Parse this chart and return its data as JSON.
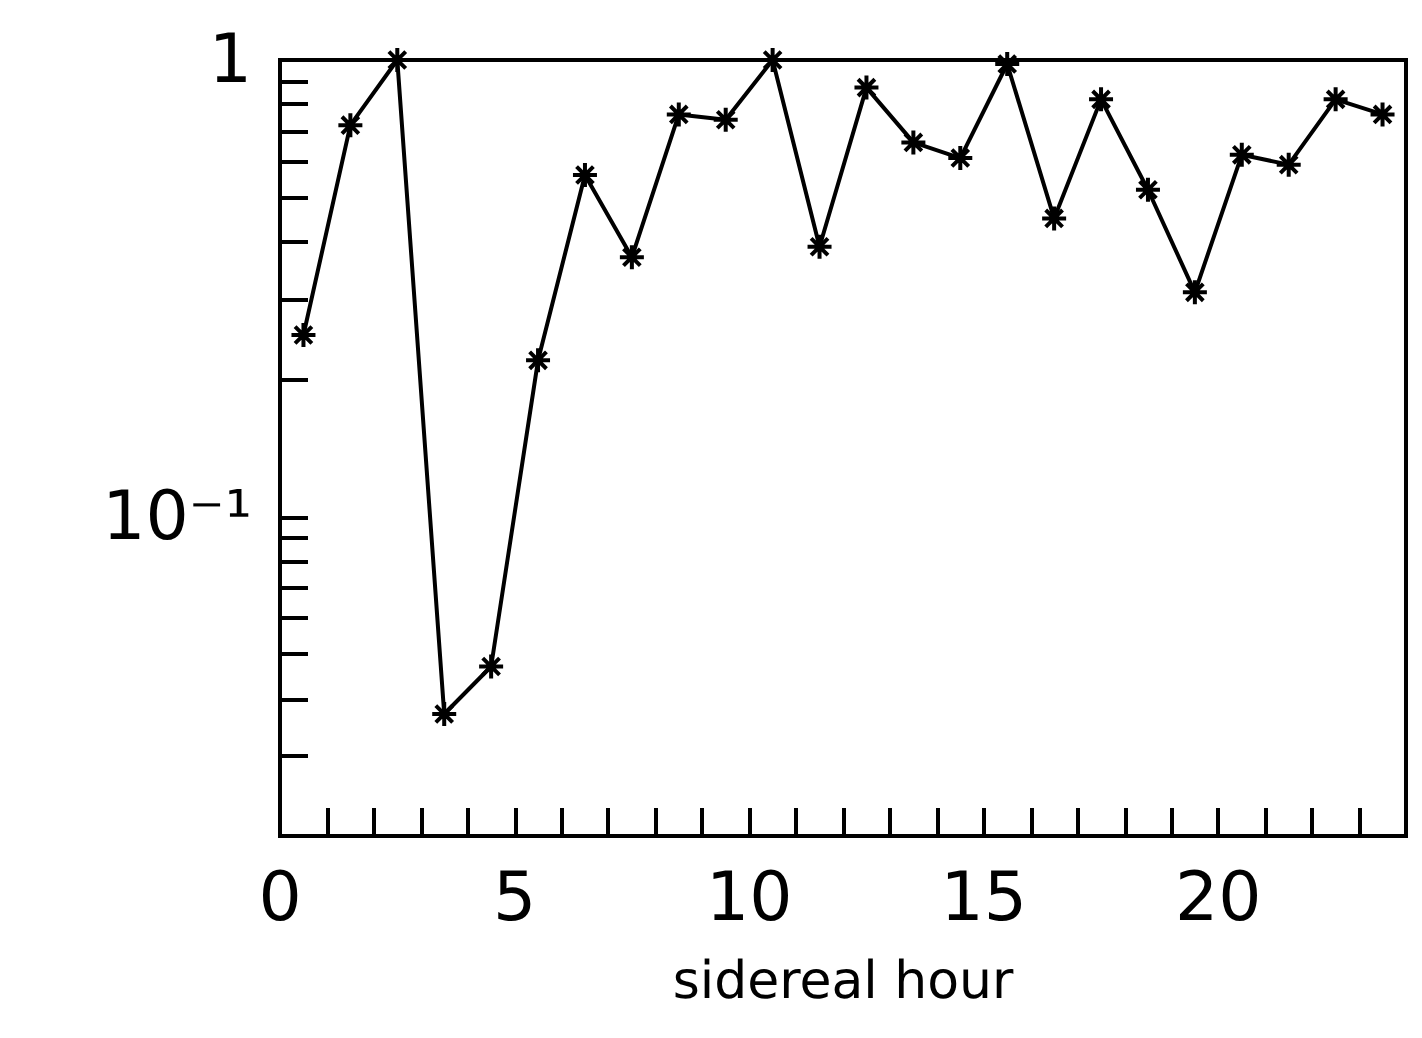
{
  "chart_data": {
    "type": "line",
    "xlabel": "sidereal hour",
    "marker": "cross",
    "line_style": "solid",
    "grid": false,
    "log": "y",
    "x": [
      0.5,
      1.5,
      2.5,
      3.5,
      4.5,
      5.5,
      6.5,
      7.5,
      8.5,
      9.5,
      10.5,
      11.5,
      12.5,
      13.5,
      14.5,
      15.5,
      16.5,
      17.5,
      18.5,
      19.5,
      20.5,
      21.5,
      22.5,
      23.5
    ],
    "series": [
      {
        "color": "#000000",
        "values": [
          0.25,
          0.72,
          1.0,
          0.037,
          0.047,
          0.22,
          0.56,
          0.37,
          0.76,
          0.74,
          1.0,
          0.39,
          0.87,
          0.66,
          0.61,
          0.98,
          0.45,
          0.82,
          0.52,
          0.31,
          0.62,
          0.59,
          0.82,
          0.76
        ]
      }
    ],
    "xlim": [
      0,
      24
    ],
    "xticks": [
      0,
      {
        "value": 1,
        "label": null
      },
      {
        "value": 2,
        "label": null
      },
      {
        "value": 3,
        "label": null
      },
      {
        "value": 4,
        "label": null
      },
      5,
      {
        "value": 6,
        "label": null
      },
      {
        "value": 7,
        "label": null
      },
      {
        "value": 8,
        "label": null
      },
      {
        "value": 9,
        "label": null
      },
      10,
      {
        "value": 11,
        "label": null
      },
      {
        "value": 12,
        "label": null
      },
      {
        "value": 13,
        "label": null
      },
      {
        "value": 14,
        "label": null
      },
      15,
      {
        "value": 16,
        "label": null
      },
      {
        "value": 17,
        "label": null
      },
      {
        "value": 18,
        "label": null
      },
      {
        "value": 19,
        "label": null
      },
      20,
      {
        "value": 21,
        "label": null
      },
      {
        "value": 22,
        "label": null
      },
      {
        "value": 23,
        "label": null
      }
    ],
    "ylim": [
      0.02,
      1
    ],
    "yticks": [
      {
        "value": 0.03,
        "label": null
      },
      {
        "value": 0.04,
        "label": null
      },
      {
        "value": 0.05,
        "label": null
      },
      {
        "value": 0.06,
        "label": null
      },
      {
        "value": 0.07,
        "label": null
      },
      {
        "value": 0.08,
        "label": null
      },
      {
        "value": 0.09,
        "label": null
      },
      {
        "value": 0.1,
        "label": "10⁻¹"
      },
      {
        "value": 0.2,
        "label": null
      },
      {
        "value": 0.3,
        "label": null
      },
      {
        "value": 0.4,
        "label": null
      },
      {
        "value": 0.5,
        "label": null
      },
      {
        "value": 0.6,
        "label": null
      },
      {
        "value": 0.7,
        "label": null
      },
      {
        "value": 0.8,
        "label": null
      },
      {
        "value": 0.9,
        "label": null
      },
      1
    ]
  }
}
